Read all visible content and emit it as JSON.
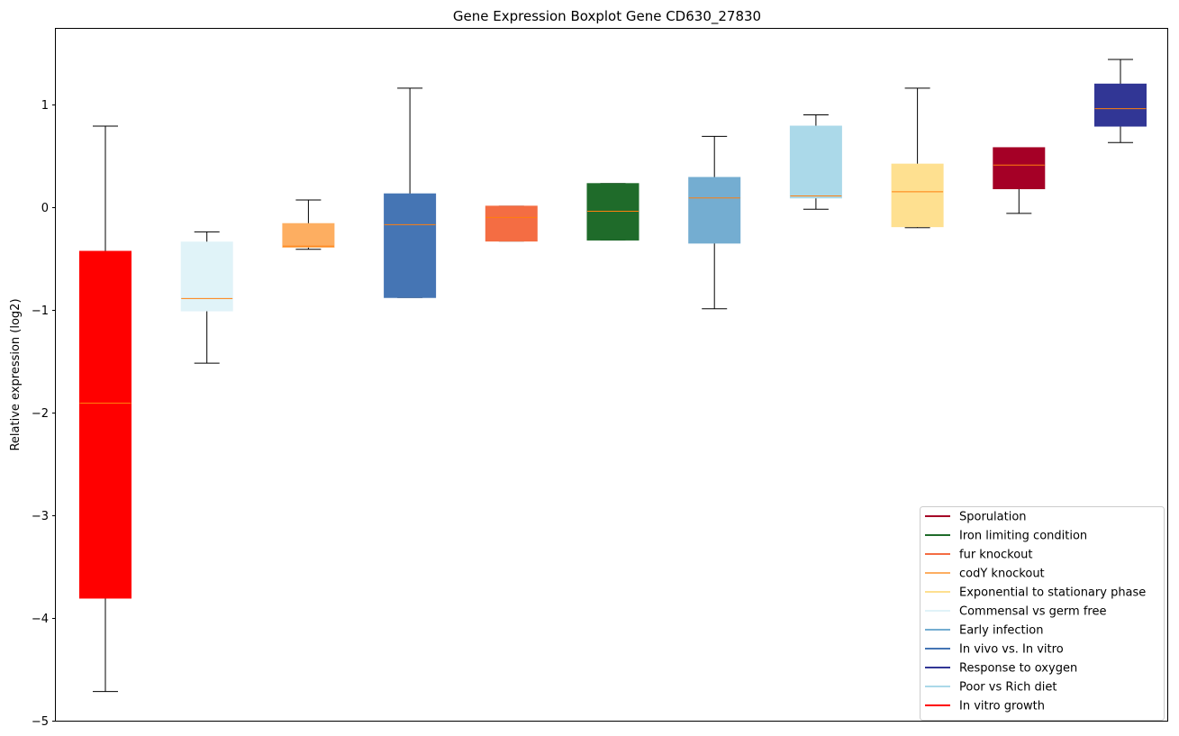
{
  "chart_data": {
    "type": "boxplot",
    "title": "Gene Expression Boxplot Gene CD630_27830",
    "xlabel": "",
    "ylabel": "Relative expression (log2)",
    "ylim": [
      -5.02,
      1.75
    ],
    "yticks": [
      -5,
      -4,
      -3,
      -2,
      -1,
      0,
      1
    ],
    "ytick_labels": [
      "−5",
      "−4",
      "−3",
      "−2",
      "−1",
      "0",
      "1"
    ],
    "legend_position": "lower-right",
    "median_color": "#ff7f0e",
    "boxes": [
      {
        "name": "In vitro growth",
        "color": "#ff0000",
        "whisker_low": -4.72,
        "q1": -3.81,
        "median": -1.91,
        "q3": -0.43,
        "whisker_high": 0.79
      },
      {
        "name": "Commensal vs germ free",
        "color": "#e0f3f8",
        "whisker_low": -1.52,
        "q1": -1.01,
        "median": -0.89,
        "q3": -0.34,
        "whisker_high": -0.24
      },
      {
        "name": "codY knockout",
        "color": "#fdae61",
        "whisker_low": -0.41,
        "q1": -0.39,
        "median": -0.38,
        "q3": -0.16,
        "whisker_high": 0.07
      },
      {
        "name": "In vivo vs. In vitro",
        "color": "#4575b4",
        "whisker_low": -0.88,
        "q1": -0.88,
        "median": -0.17,
        "q3": 0.13,
        "whisker_high": 1.16
      },
      {
        "name": "fur knockout",
        "color": "#f46d43",
        "whisker_low": -0.33,
        "q1": -0.33,
        "median": -0.1,
        "q3": 0.01,
        "whisker_high": 0.01
      },
      {
        "name": "Iron limiting condition",
        "color": "#1f6b2a",
        "whisker_low": -0.32,
        "q1": -0.32,
        "median": -0.04,
        "q3": 0.23,
        "whisker_high": 0.23
      },
      {
        "name": "Early infection",
        "color": "#74add1",
        "whisker_low": -0.99,
        "q1": -0.35,
        "median": 0.09,
        "q3": 0.29,
        "whisker_high": 0.69
      },
      {
        "name": "Poor vs Rich diet",
        "color": "#abd9e9",
        "whisker_low": -0.02,
        "q1": 0.09,
        "median": 0.11,
        "q3": 0.79,
        "whisker_high": 0.9
      },
      {
        "name": "Exponential to stationary phase",
        "color": "#fee090",
        "whisker_low": -0.2,
        "q1": -0.19,
        "median": 0.15,
        "q3": 0.42,
        "whisker_high": 1.16
      },
      {
        "name": "Sporulation",
        "color": "#a50026",
        "whisker_low": -0.06,
        "q1": 0.18,
        "median": 0.41,
        "q3": 0.58,
        "whisker_high": 0.58
      },
      {
        "name": "Response to oxygen",
        "color": "#313695",
        "whisker_low": 0.63,
        "q1": 0.79,
        "median": 0.96,
        "q3": 1.2,
        "whisker_high": 1.44
      }
    ],
    "legend": [
      {
        "label": "Sporulation",
        "color": "#a50026"
      },
      {
        "label": "Iron limiting condition",
        "color": "#1f6b2a"
      },
      {
        "label": "fur knockout",
        "color": "#f46d43"
      },
      {
        "label": "codY knockout",
        "color": "#fdae61"
      },
      {
        "label": "Exponential to stationary phase",
        "color": "#fee090"
      },
      {
        "label": "Commensal vs germ free",
        "color": "#e0f3f8"
      },
      {
        "label": "Early infection",
        "color": "#74add1"
      },
      {
        "label": "In vivo vs. In vitro",
        "color": "#4575b4"
      },
      {
        "label": "Response to oxygen",
        "color": "#313695"
      },
      {
        "label": "Poor vs Rich diet",
        "color": "#abd9e9"
      },
      {
        "label": "In vitro growth",
        "color": "#ff0000"
      }
    ]
  }
}
